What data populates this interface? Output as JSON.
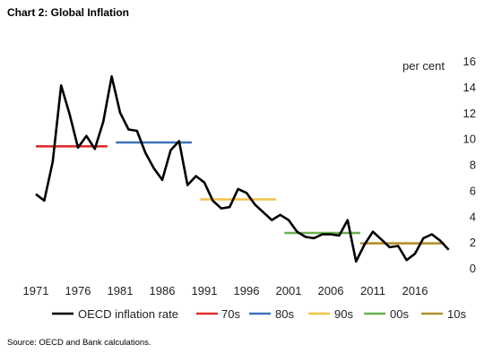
{
  "page": {
    "title": "Chart 2: Global Inflation",
    "source": "Source: OECD and Bank calculations."
  },
  "chart_data": {
    "type": "line",
    "title": "Chart 2: Global Inflation",
    "ylabel": "per cent",
    "ylim": [
      0,
      16
    ],
    "yticks": [
      0,
      2,
      4,
      6,
      8,
      10,
      12,
      14,
      16
    ],
    "xlim": [
      1971,
      2021
    ],
    "xticks": [
      1971,
      1976,
      1981,
      1986,
      1991,
      1996,
      2001,
      2006,
      2011,
      2016
    ],
    "grid": false,
    "legend_position": "bottom",
    "series": [
      {
        "name": "OECD inflation rate",
        "color": "#000000",
        "x": [
          1971,
          1972,
          1973,
          1974,
          1975,
          1976,
          1977,
          1978,
          1979,
          1980,
          1981,
          1982,
          1983,
          1984,
          1985,
          1986,
          1987,
          1988,
          1989,
          1990,
          1991,
          1992,
          1993,
          1994,
          1995,
          1996,
          1997,
          1998,
          1999,
          2000,
          2001,
          2002,
          2003,
          2004,
          2005,
          2006,
          2007,
          2008,
          2009,
          2010,
          2011,
          2012,
          2013,
          2014,
          2015,
          2016,
          2017,
          2018,
          2019,
          2020
        ],
        "y": [
          5.7,
          5.2,
          8.2,
          14.1,
          11.9,
          9.3,
          10.2,
          9.2,
          11.3,
          14.8,
          12.0,
          10.7,
          10.6,
          8.9,
          7.7,
          6.8,
          9.1,
          9.8,
          6.4,
          7.1,
          6.6,
          5.2,
          4.6,
          4.7,
          6.1,
          5.8,
          4.9,
          4.3,
          3.7,
          4.1,
          3.7,
          2.8,
          2.4,
          2.3,
          2.6,
          2.6,
          2.5,
          3.7,
          0.5,
          1.8,
          2.8,
          2.2,
          1.6,
          1.7,
          0.6,
          1.1,
          2.3,
          2.6,
          2.1,
          1.4
        ]
      },
      {
        "name": "70s",
        "color": "#e02e2e",
        "x": [
          1971,
          1979.5
        ],
        "y": [
          9.4,
          9.4
        ]
      },
      {
        "name": "80s",
        "color": "#3c73b9",
        "x": [
          1980.5,
          1989.5
        ],
        "y": [
          9.7,
          9.7
        ]
      },
      {
        "name": "90s",
        "color": "#f2c343",
        "x": [
          1990.5,
          1999.5
        ],
        "y": [
          5.3,
          5.3
        ]
      },
      {
        "name": "00s",
        "color": "#6ab04c",
        "x": [
          2000.5,
          2009.5
        ],
        "y": [
          2.7,
          2.7
        ]
      },
      {
        "name": "10s",
        "color": "#b38f2d",
        "x": [
          2009.5,
          2019.5
        ],
        "y": [
          1.9,
          1.9
        ]
      }
    ]
  }
}
